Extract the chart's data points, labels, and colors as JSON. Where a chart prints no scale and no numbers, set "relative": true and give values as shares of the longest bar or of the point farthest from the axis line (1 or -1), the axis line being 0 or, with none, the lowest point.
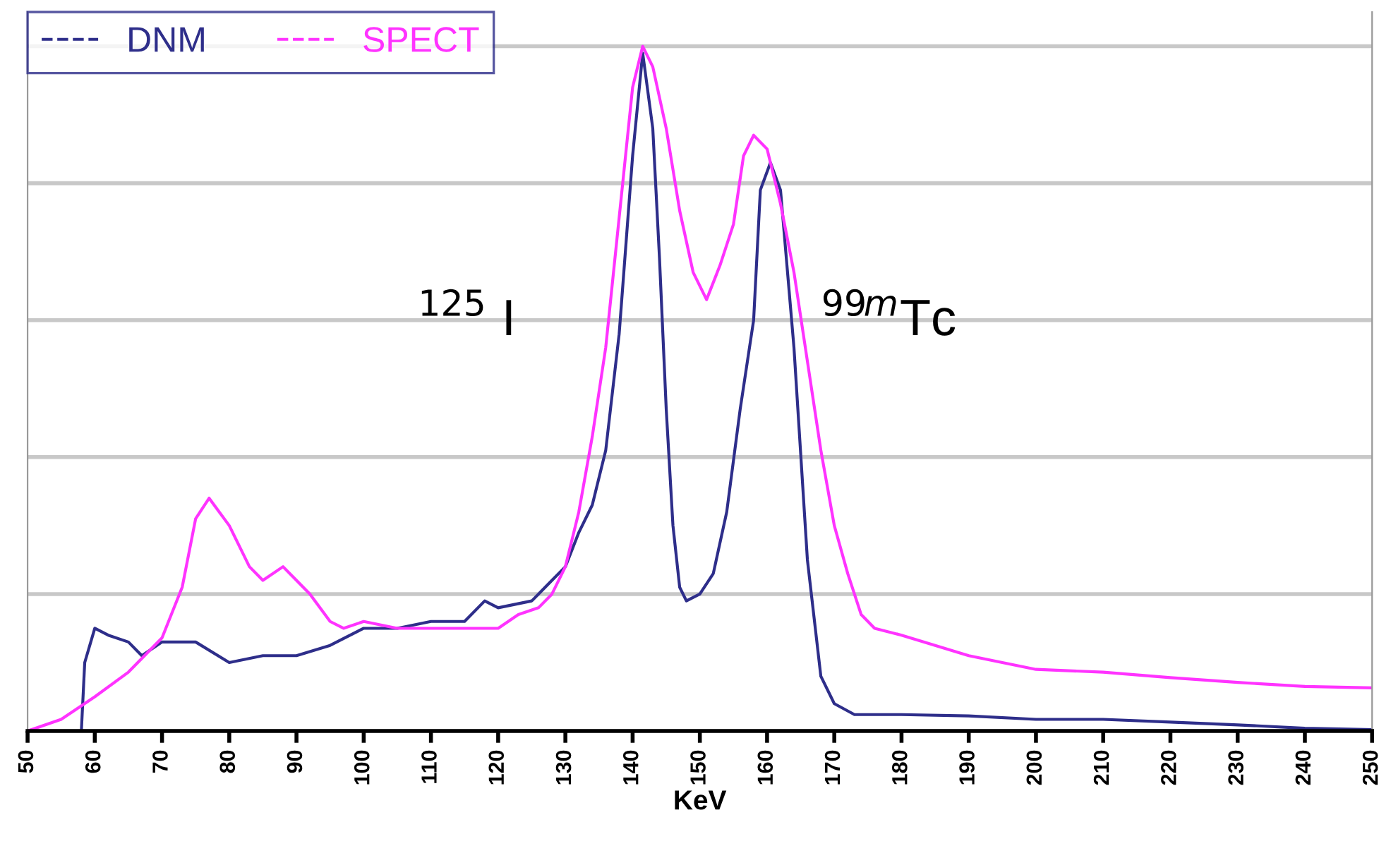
{
  "chart_data": {
    "type": "line",
    "relative": true,
    "xlabel": "KeV",
    "xlim": [
      50,
      250
    ],
    "xticks": [
      50,
      60,
      70,
      80,
      90,
      100,
      110,
      120,
      130,
      140,
      150,
      160,
      170,
      180,
      190,
      200,
      210,
      220,
      230,
      240,
      250
    ],
    "tick_labels": "x",
    "grid": "y",
    "legend": "top left",
    "annotations": [
      "$^{125}$ I",
      "$^{99m}$Tc"
    ],
    "series": [
      {
        "name": "DNM",
        "color": "#2e2e8a",
        "x": [
          50,
          58,
          58.5,
          60,
          62,
          65,
          67,
          70,
          75,
          80,
          85,
          90,
          95,
          100,
          105,
          110,
          115,
          118,
          120,
          125,
          128,
          130,
          132,
          134,
          136,
          138,
          140,
          141.5,
          143,
          144,
          145,
          146,
          147,
          148,
          150,
          152,
          154,
          156,
          158,
          159,
          160.5,
          162,
          164,
          166,
          168,
          170,
          173,
          180,
          190,
          200,
          210,
          220,
          230,
          240,
          250
        ],
        "values": [
          0,
          0,
          0.1,
          0.15,
          0.14,
          0.13,
          0.11,
          0.13,
          0.13,
          0.1,
          0.11,
          0.11,
          0.125,
          0.15,
          0.15,
          0.16,
          0.16,
          0.19,
          0.18,
          0.19,
          0.22,
          0.24,
          0.29,
          0.33,
          0.41,
          0.58,
          0.84,
          0.99,
          0.88,
          0.69,
          0.47,
          0.3,
          0.21,
          0.19,
          0.2,
          0.23,
          0.32,
          0.47,
          0.6,
          0.79,
          0.83,
          0.79,
          0.56,
          0.25,
          0.08,
          0.04,
          0.024,
          0.024,
          0.022,
          0.017,
          0.017,
          0.013,
          0.009,
          0.004,
          0.002
        ]
      },
      {
        "name": "SPECT",
        "color": "#ff33ff",
        "x": [
          50,
          55,
          60,
          65,
          70,
          73,
          75,
          77,
          78.5,
          80,
          83,
          85,
          88,
          90,
          92,
          95,
          97,
          100,
          105,
          110,
          115,
          120,
          123,
          126,
          128,
          130,
          132,
          134,
          136,
          138,
          140,
          141.5,
          143,
          145,
          147,
          149,
          151,
          153,
          155,
          156.5,
          158,
          160,
          162,
          164,
          166,
          168,
          170,
          172,
          174,
          176,
          180,
          190,
          200,
          210,
          220,
          230,
          240,
          250
        ],
        "values": [
          0,
          0.017,
          0.05,
          0.086,
          0.136,
          0.21,
          0.31,
          0.34,
          0.32,
          0.3,
          0.24,
          0.22,
          0.24,
          0.22,
          0.2,
          0.16,
          0.15,
          0.16,
          0.15,
          0.15,
          0.15,
          0.15,
          0.17,
          0.18,
          0.2,
          0.24,
          0.32,
          0.43,
          0.56,
          0.75,
          0.94,
          1,
          0.97,
          0.88,
          0.76,
          0.67,
          0.63,
          0.68,
          0.74,
          0.84,
          0.87,
          0.85,
          0.77,
          0.67,
          0.54,
          0.41,
          0.3,
          0.23,
          0.17,
          0.15,
          0.14,
          0.11,
          0.09,
          0.086,
          0.078,
          0.071,
          0.065,
          0.063
        ]
      }
    ]
  }
}
